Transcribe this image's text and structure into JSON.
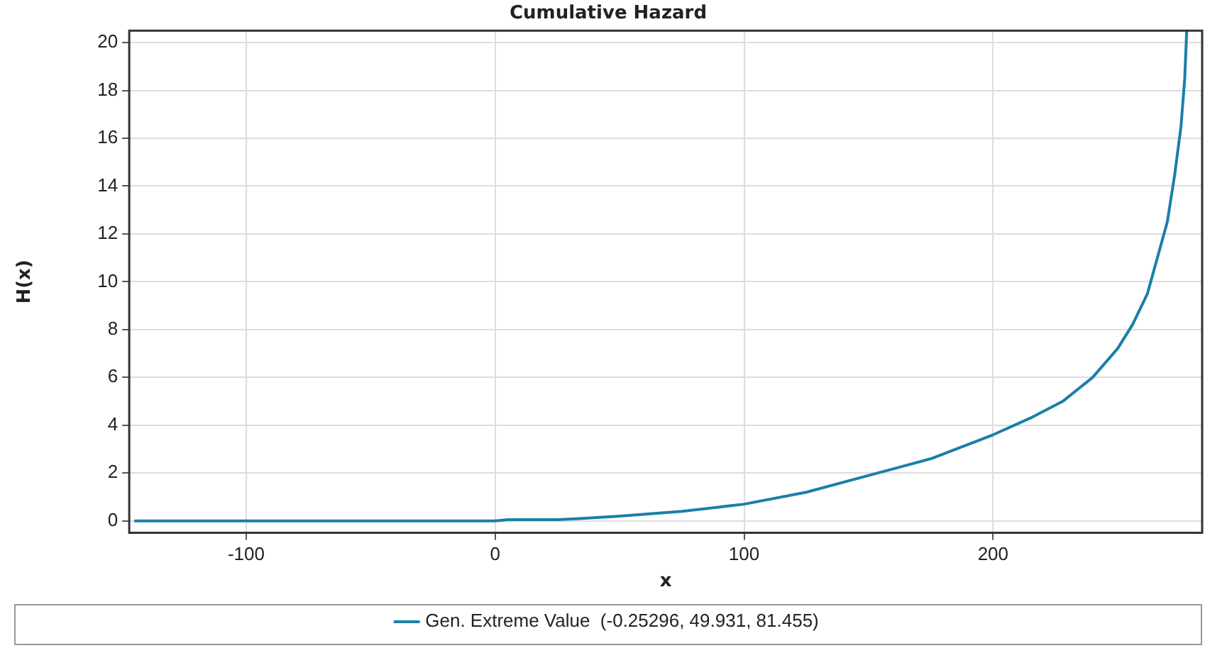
{
  "chart_data": {
    "type": "line",
    "title": "Cumulative Hazard",
    "xlabel": "x",
    "ylabel": "H(x)",
    "xlim": [
      -147,
      284
    ],
    "xticks": [
      -100,
      0,
      100,
      200
    ],
    "ylim": [
      -0.5,
      20.5
    ],
    "yticks": [
      0,
      2,
      4,
      6,
      8,
      10,
      12,
      14,
      16,
      18,
      20
    ],
    "grid": true,
    "legend": "bottom",
    "marker": "none",
    "line_style": "solid",
    "series": [
      {
        "name": "Gen. Extreme Value  (-0.25296, 49.931, 81.455)",
        "color": "#1a7fa8",
        "x": [
          -145,
          0,
          5,
          25,
          35,
          50,
          75,
          100,
          125,
          150,
          175,
          200,
          215,
          228,
          240,
          250,
          256,
          262,
          266,
          270,
          273,
          275.5,
          277,
          277.8
        ],
        "values": [
          0,
          0,
          0.05,
          0.05,
          0.1,
          0.2,
          0.4,
          0.7,
          1.2,
          1.9,
          2.6,
          3.6,
          4.3,
          5.0,
          6.0,
          7.2,
          8.2,
          9.5,
          11,
          12.5,
          14.5,
          16.5,
          18.5,
          20.5
        ]
      }
    ]
  }
}
